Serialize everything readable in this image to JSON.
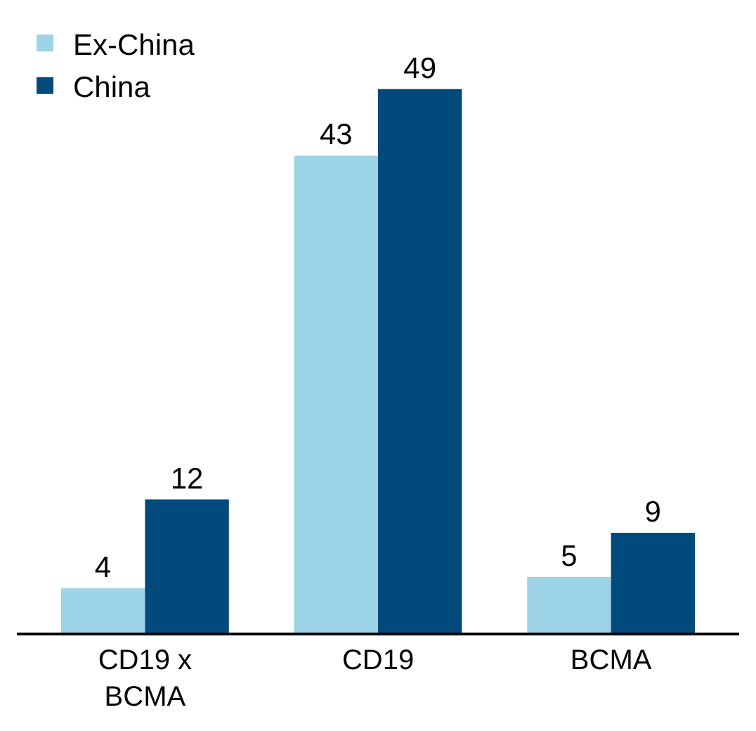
{
  "chart_data": {
    "type": "bar",
    "categories": [
      "CD19 x BCMA",
      "CD19",
      "BCMA"
    ],
    "series": [
      {
        "name": "Ex-China",
        "color": "#9dd3e6",
        "values": [
          4,
          43,
          5
        ]
      },
      {
        "name": "China",
        "color": "#004b7c",
        "values": [
          12,
          49,
          9
        ]
      }
    ],
    "data_labels": true,
    "legend": "top left"
  }
}
